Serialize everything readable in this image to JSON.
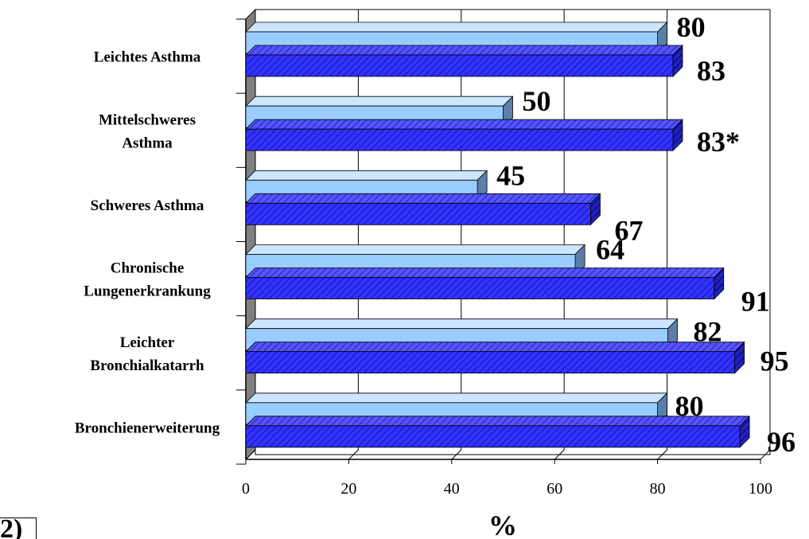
{
  "chart_data": {
    "type": "bar",
    "orientation": "horizontal",
    "categories": [
      [
        "Leichtes Asthma"
      ],
      [
        "Mittelschweres",
        "Asthma"
      ],
      [
        "Schweres Asthma"
      ],
      [
        "Chronische",
        "Lungenerkrankung"
      ],
      [
        "Leichter",
        "Bronchialkatarrh"
      ],
      [
        "Bronchienerweiterung"
      ]
    ],
    "series": [
      {
        "values": [
          80,
          50,
          45,
          64,
          82,
          80
        ],
        "color": "#99ccff"
      },
      {
        "values": [
          83,
          83,
          67,
          91,
          95,
          96
        ],
        "color": "#3333ff",
        "pattern": "diagonal-hatch"
      }
    ],
    "data_labels": [
      [
        "80",
        "50",
        "45",
        "64",
        "82",
        "80"
      ],
      [
        "83",
        "83*",
        "67",
        "91",
        "95",
        "96"
      ]
    ],
    "xlabel": "%",
    "xlim": [
      0,
      100
    ],
    "xticks": [
      "0",
      "20",
      "40",
      "60",
      "80",
      "100"
    ],
    "grid": true,
    "style": "3d"
  },
  "corner_fragment": "2)"
}
